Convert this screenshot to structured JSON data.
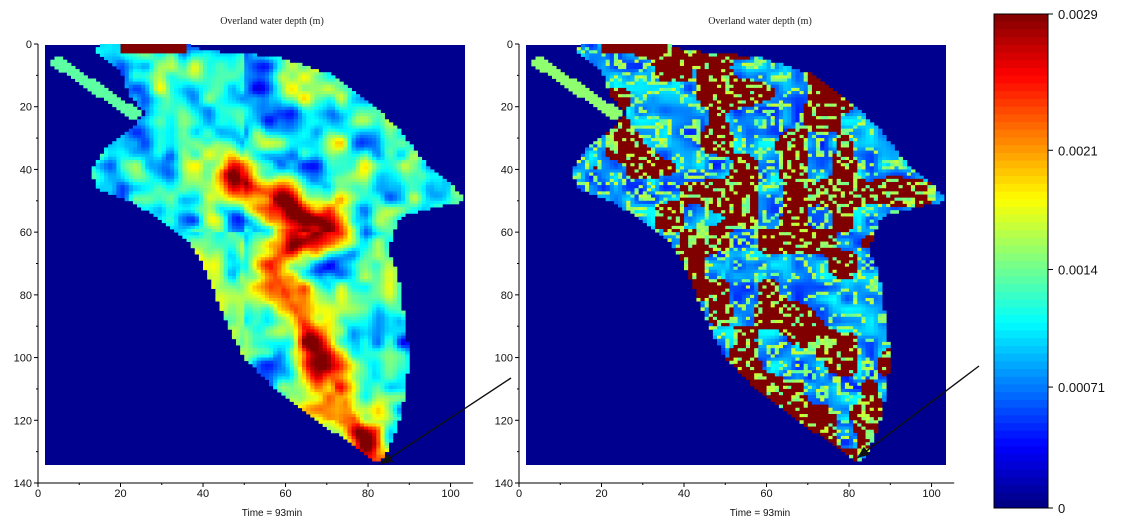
{
  "chart_data": [
    {
      "type": "heatmap",
      "title": "Overland water depth (m)",
      "xlabel": "Time = 93min",
      "ylabel": "",
      "xlim": [
        0,
        105
      ],
      "ylim": [
        140,
        0
      ],
      "x_ticks": [
        0,
        20,
        40,
        60,
        80,
        100
      ],
      "y_ticks": [
        0,
        20,
        40,
        60,
        80,
        100,
        120,
        140
      ],
      "value_range": [
        0,
        0.0029
      ],
      "outlet": [
        83,
        134
      ],
      "pattern": "connected"
    },
    {
      "type": "heatmap",
      "title": "Overland water depth (m)",
      "xlabel": "Time = 93min",
      "ylabel": "",
      "xlim": [
        0,
        105
      ],
      "ylim": [
        140,
        0
      ],
      "x_ticks": [
        0,
        20,
        40,
        60,
        80,
        100
      ],
      "y_ticks": [
        0,
        20,
        40,
        60,
        80,
        100,
        120,
        140
      ],
      "value_range": [
        0,
        0.0029
      ],
      "outlet": [
        82,
        132
      ],
      "pattern": "patchy"
    }
  ],
  "colorbar": {
    "tick_labels": [
      "0.0029",
      "0.0021",
      "0.0014",
      "0.00071",
      "0"
    ],
    "tick_values": [
      0.0029,
      0.0021,
      0.0014,
      0.00071,
      0
    ],
    "min": 0,
    "max": 0.0029,
    "colormap": "jet"
  },
  "colors": {
    "background_field": "#00008f",
    "frame": "#000000"
  }
}
